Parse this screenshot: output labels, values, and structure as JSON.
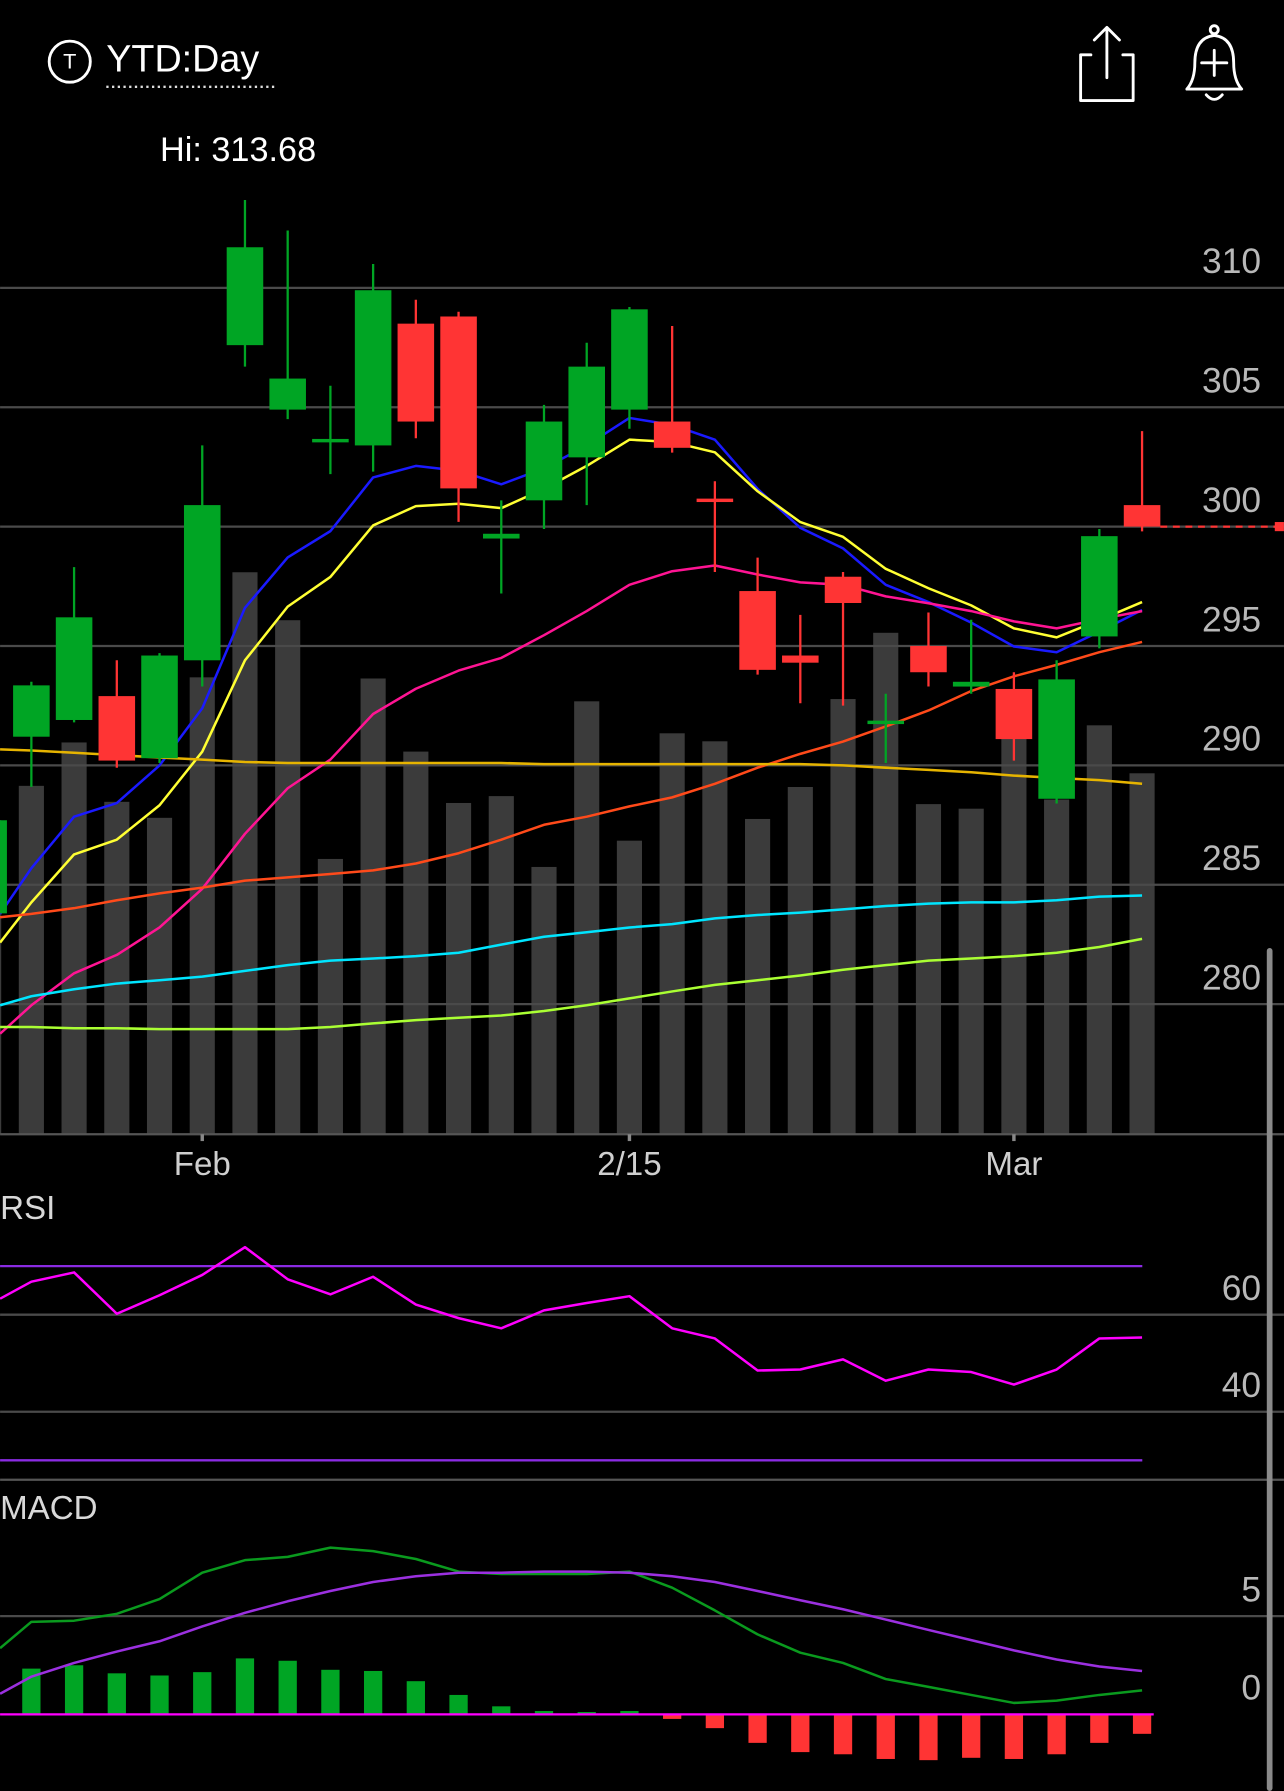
{
  "header": {
    "icon": "T",
    "title": "YTD:Day"
  },
  "chart_data": [
    {
      "type": "candlestick",
      "annotation": "Hi: 313.68",
      "categories": [
        null,
        null,
        null,
        null,
        null,
        "Feb",
        null,
        null,
        null,
        null,
        null,
        null,
        null,
        null,
        null,
        "2/15",
        null,
        null,
        null,
        null,
        null,
        null,
        null,
        null,
        "Mar",
        null,
        null,
        null
      ],
      "open": [
        283.8,
        291.2,
        291.9,
        292.9,
        290.3,
        294.4,
        307.6,
        304.9,
        303.5,
        303.4,
        308.5,
        308.8,
        299.5,
        301.1,
        302.9,
        304.9,
        304.4,
        301.1,
        297.3,
        294.6,
        297.9,
        291.7,
        295.0,
        293.3,
        293.2,
        288.6,
        295.4,
        300.9
      ],
      "high": [
        288.0,
        293.5,
        298.3,
        294.4,
        294.7,
        303.4,
        313.68,
        312.4,
        305.9,
        311.0,
        309.5,
        309.0,
        301.1,
        305.1,
        307.7,
        309.2,
        308.4,
        301.9,
        298.7,
        296.3,
        298.1,
        293.0,
        296.4,
        296.1,
        293.9,
        294.4,
        299.9,
        304.0
      ],
      "low": [
        283.5,
        289.1,
        291.8,
        289.9,
        290.1,
        293.3,
        306.7,
        304.5,
        302.2,
        302.3,
        303.7,
        300.2,
        297.2,
        299.9,
        300.9,
        304.1,
        303.1,
        298.1,
        293.8,
        292.6,
        292.5,
        290.1,
        293.3,
        293.0,
        290.2,
        288.4,
        294.9,
        299.8
      ],
      "close": [
        287.7,
        293.35,
        296.2,
        290.2,
        294.6,
        300.9,
        311.7,
        306.2,
        303.6,
        309.9,
        304.4,
        301.6,
        299.7,
        304.4,
        306.7,
        309.1,
        303.3,
        301.0,
        294.0,
        294.3,
        296.8,
        291.8,
        293.9,
        293.5,
        291.1,
        293.6,
        299.6,
        300.0
      ],
      "up_color": "#00a524",
      "down_color": "#ff3434",
      "volume": {
        "color": "#3b3b3b",
        "values": [
          275,
          305,
          343,
          291,
          277,
          400,
          492,
          450,
          241,
          399,
          335,
          290,
          296,
          234,
          379,
          257,
          351,
          344,
          276,
          304,
          381,
          439,
          289,
          285,
          348,
          293,
          358,
          316
        ]
      },
      "series": [
        {
          "color": "#1a1aff",
          "values": [
            283.78,
            285.69,
            287.85,
            288.42,
            290.0,
            292.39,
            296.6,
            298.71,
            299.81,
            302.06,
            302.54,
            302.34,
            301.77,
            302.44,
            303.4,
            304.55,
            304.26,
            303.64,
            301.58,
            299.95,
            299.09,
            297.56,
            296.84,
            295.98,
            294.98,
            294.74,
            295.6,
            296.51
          ]
        },
        {
          "color": "#ffff33",
          "values": [
            282.58,
            284.26,
            286.27,
            286.89,
            288.33,
            290.57,
            294.4,
            296.65,
            297.89,
            300.05,
            300.86,
            300.96,
            300.77,
            301.58,
            302.54,
            303.64,
            303.54,
            303.11,
            301.48,
            300.19,
            299.57,
            298.23,
            297.42,
            296.7,
            295.74,
            295.36,
            296.08,
            296.84
          ]
        },
        {
          "color": "#ff1493",
          "values": [
            278.76,
            279.95,
            281.29,
            282.06,
            283.21,
            284.83,
            287.13,
            289.04,
            290.24,
            292.15,
            293.21,
            293.97,
            294.5,
            295.45,
            296.46,
            297.56,
            298.13,
            298.37,
            297.99,
            297.66,
            297.56,
            297.08,
            296.79,
            296.46,
            296.03,
            295.74,
            296.12,
            296.46
          ]
        },
        {
          "color": "#ff4a1a",
          "values": [
            283.64,
            283.78,
            284.02,
            284.35,
            284.64,
            284.88,
            285.17,
            285.31,
            285.45,
            285.6,
            285.89,
            286.32,
            286.89,
            287.51,
            287.85,
            288.28,
            288.66,
            289.23,
            289.9,
            290.48,
            291.0,
            291.63,
            292.3,
            293.11,
            293.73,
            294.21,
            294.74,
            295.17
          ]
        },
        {
          "color": "#e6b400",
          "values": [
            290.67,
            290.62,
            290.53,
            290.43,
            290.33,
            290.24,
            290.14,
            290.1,
            290.1,
            290.1,
            290.1,
            290.1,
            290.1,
            290.05,
            290.05,
            290.05,
            290.05,
            290.05,
            290.05,
            290.05,
            290.0,
            289.9,
            289.81,
            289.71,
            289.57,
            289.47,
            289.38,
            289.23
          ]
        },
        {
          "color": "#00e5ff",
          "values": [
            279.95,
            280.33,
            280.62,
            280.86,
            281.0,
            281.15,
            281.39,
            281.63,
            281.82,
            281.91,
            282.01,
            282.15,
            282.49,
            282.82,
            283.01,
            283.21,
            283.35,
            283.59,
            283.73,
            283.83,
            283.97,
            284.11,
            284.21,
            284.26,
            284.26,
            284.35,
            284.5,
            284.55
          ]
        },
        {
          "color": "#aaff33",
          "values": [
            279.04,
            279.04,
            278.99,
            278.99,
            278.95,
            278.95,
            278.95,
            278.95,
            279.04,
            279.19,
            279.33,
            279.43,
            279.52,
            279.71,
            279.95,
            280.24,
            280.53,
            280.81,
            281.0,
            281.2,
            281.44,
            281.63,
            281.82,
            281.91,
            282.01,
            282.15,
            282.39,
            282.73
          ]
        }
      ],
      "ylim": [
        274.55,
        314.88
      ],
      "yticks": [
        280,
        285,
        290,
        295,
        300,
        305,
        310
      ],
      "grid": true
    },
    {
      "type": "line",
      "title": "RSI",
      "series": [
        {
          "color": "#ff00ff",
          "values": [
            63.3,
            66.8,
            68.7,
            60.2,
            64.0,
            68.2,
            73.9,
            67.3,
            64.2,
            67.8,
            62.1,
            59.3,
            57.2,
            60.9,
            62.4,
            63.8,
            57.2,
            55.1,
            48.5,
            48.7,
            50.8,
            46.4,
            48.7,
            48.2,
            45.6,
            48.7,
            55.1,
            55.3
          ]
        }
      ],
      "levels": [
        30,
        70
      ],
      "level_color": "#8a2be2",
      "ylim": [
        26,
        85
      ],
      "yticks": [
        40,
        60
      ],
      "grid": true
    },
    {
      "type": "macd",
      "title": "MACD",
      "series": [
        {
          "color": "#0a9a1e",
          "values": [
            3.37,
            4.71,
            4.77,
            5.12,
            5.87,
            7.21,
            7.85,
            8.02,
            8.49,
            8.31,
            7.91,
            7.27,
            7.15,
            7.15,
            7.15,
            7.27,
            6.45,
            5.29,
            4.07,
            3.14,
            2.62,
            1.8,
            1.4,
            0.99,
            0.58,
            0.7,
            0.99,
            1.22
          ]
        },
        {
          "color": "#9b30e0",
          "values": [
            1.05,
            1.92,
            2.62,
            3.2,
            3.72,
            4.48,
            5.17,
            5.76,
            6.28,
            6.74,
            7.03,
            7.21,
            7.21,
            7.27,
            7.27,
            7.21,
            7.03,
            6.74,
            6.28,
            5.81,
            5.35,
            4.83,
            4.3,
            3.78,
            3.26,
            2.79,
            2.44,
            2.21
          ]
        }
      ],
      "histogram": {
        "up_color": "#00a524",
        "down_color": "#ff3434",
        "values": [
          null,
          2.33,
          2.5,
          2.09,
          1.98,
          2.15,
          2.85,
          2.73,
          2.27,
          2.21,
          1.69,
          0.99,
          0.41,
          0.17,
          0.12,
          0.17,
          -0.23,
          -0.7,
          -1.45,
          -1.92,
          -2.03,
          -2.27,
          -2.33,
          -2.21,
          -2.27,
          -2.03,
          -1.45,
          -0.99
        ]
      },
      "zero_color": "#ff00ff",
      "ylim": [
        -3.9,
        11.45
      ],
      "yticks": [
        0,
        5
      ],
      "grid": true
    }
  ]
}
